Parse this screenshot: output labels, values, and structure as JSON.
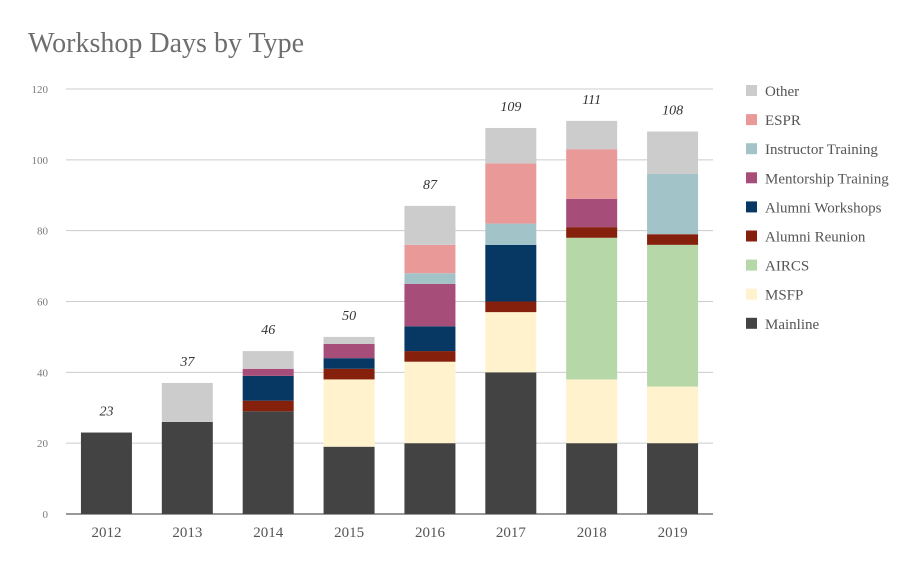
{
  "chart_data": {
    "type": "bar",
    "stacked": true,
    "title": "Workshop Days by Type",
    "xlabel": "",
    "ylabel": "",
    "ylim": [
      0,
      120
    ],
    "yticks": [
      0,
      20,
      40,
      60,
      80,
      100,
      120
    ],
    "grid": true,
    "legend_position": "right",
    "categories": [
      "2012",
      "2013",
      "2014",
      "2015",
      "2016",
      "2017",
      "2018",
      "2019"
    ],
    "totals": [
      23,
      37,
      46,
      50,
      87,
      109,
      111,
      108
    ],
    "series": [
      {
        "name": "Mainline",
        "color": "#434343",
        "values": [
          23,
          26,
          29,
          19,
          20,
          40,
          20,
          20
        ]
      },
      {
        "name": "MSFP",
        "color": "#fff2cc",
        "values": [
          0,
          0,
          0,
          19,
          23,
          17,
          18,
          16
        ]
      },
      {
        "name": "AIRCS",
        "color": "#b6d7a8",
        "values": [
          0,
          0,
          0,
          0,
          0,
          0,
          40,
          40
        ]
      },
      {
        "name": "Alumni Reunion",
        "color": "#85200c",
        "values": [
          0,
          0,
          3,
          3,
          3,
          3,
          3,
          3
        ]
      },
      {
        "name": "Alumni Workshops",
        "color": "#073763",
        "values": [
          0,
          0,
          7,
          3,
          7,
          16,
          0,
          0
        ]
      },
      {
        "name": "Mentorship Training",
        "color": "#a64d79",
        "values": [
          0,
          0,
          2,
          4,
          12,
          0,
          8,
          0
        ]
      },
      {
        "name": "Instructor Training",
        "color": "#a2c4c9",
        "values": [
          0,
          0,
          0,
          0,
          3,
          6,
          0,
          17
        ]
      },
      {
        "name": "ESPR",
        "color": "#ea9999",
        "values": [
          0,
          0,
          0,
          0,
          8,
          17,
          14,
          0
        ]
      },
      {
        "name": "Other",
        "color": "#cccccc",
        "values": [
          0,
          11,
          5,
          2,
          11,
          10,
          8,
          12
        ]
      }
    ]
  }
}
